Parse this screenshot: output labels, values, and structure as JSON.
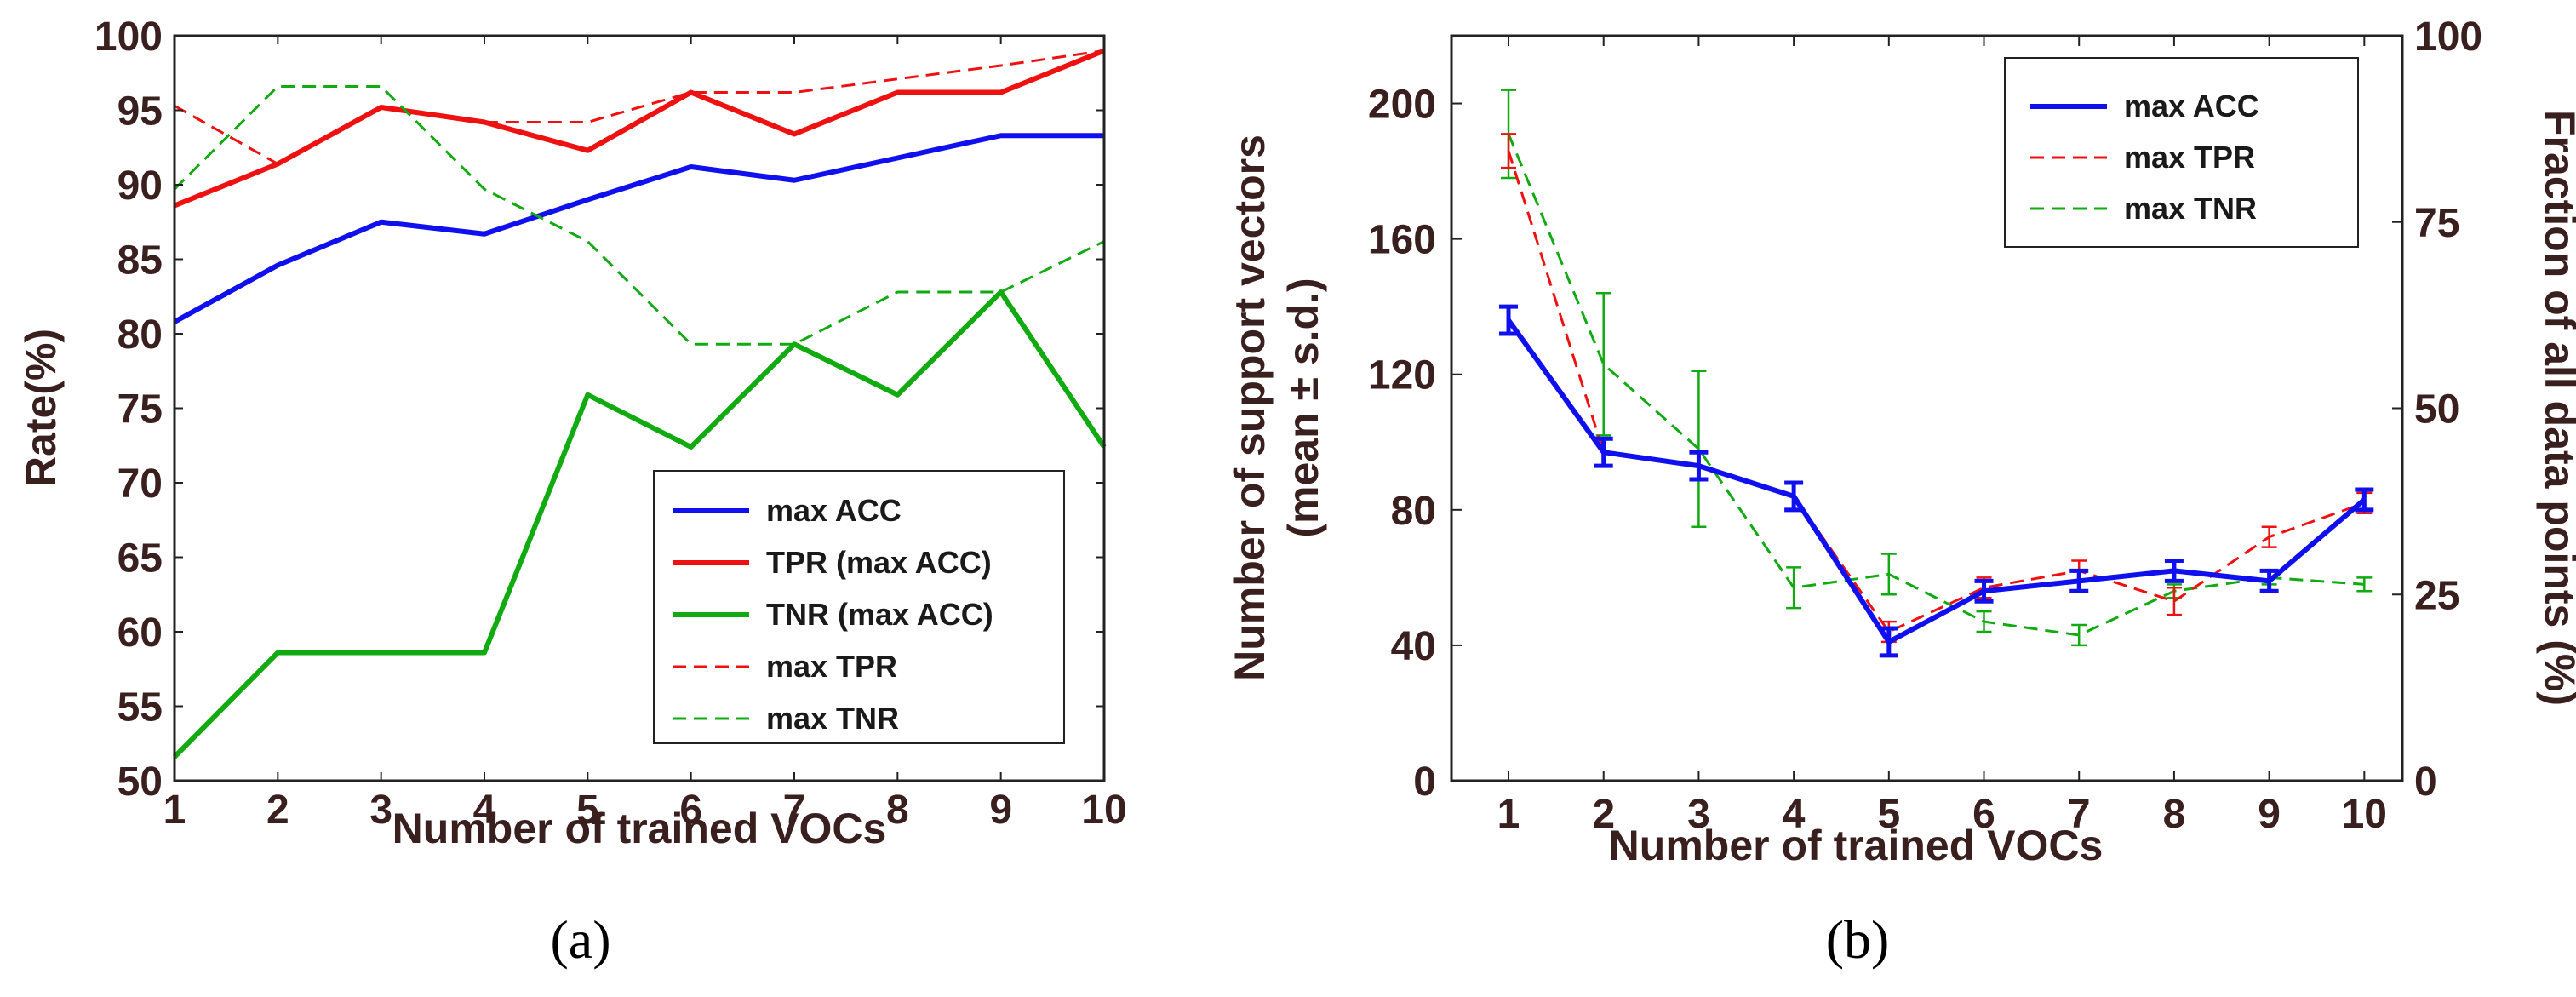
{
  "chart_data": [
    {
      "type": "line",
      "panel_label": "(a)",
      "xlabel": "Number of trained VOCs",
      "ylabel": "Rate(%)",
      "x": [
        1,
        2,
        3,
        4,
        5,
        6,
        7,
        8,
        9,
        10
      ],
      "xlim": [
        1,
        10
      ],
      "ylim": [
        50,
        100
      ],
      "xticks": [
        1,
        2,
        3,
        4,
        5,
        6,
        7,
        8,
        9,
        10
      ],
      "yticks": [
        50,
        55,
        60,
        65,
        70,
        75,
        80,
        85,
        90,
        95,
        100
      ],
      "legend_position": "bottom-right",
      "series": [
        {
          "name": "max ACC",
          "color": "#1010ee",
          "dash": "solid",
          "values": [
            80.8,
            84.6,
            87.5,
            86.7,
            89.0,
            91.2,
            90.3,
            91.8,
            93.3,
            93.3
          ]
        },
        {
          "name": "TPR (max ACC)",
          "color": "#ee1111",
          "dash": "solid",
          "values": [
            88.6,
            91.4,
            95.2,
            94.2,
            92.3,
            96.2,
            93.4,
            96.2,
            96.2,
            99.0
          ]
        },
        {
          "name": "TNR (max ACC)",
          "color": "#11aa11",
          "dash": "solid",
          "values": [
            51.6,
            58.6,
            58.6,
            58.6,
            75.9,
            72.4,
            79.3,
            75.9,
            82.8,
            72.4
          ]
        },
        {
          "name": "max TPR",
          "color": "#ee1111",
          "dash": "dashed",
          "values": [
            95.3,
            91.4,
            95.2,
            94.2,
            94.2,
            96.2,
            96.2,
            97.1,
            98.0,
            99.0
          ]
        },
        {
          "name": "max TNR",
          "color": "#11aa11",
          "dash": "dashed",
          "values": [
            89.7,
            96.6,
            96.6,
            89.7,
            86.2,
            79.3,
            79.3,
            82.8,
            82.8,
            86.2
          ]
        }
      ]
    },
    {
      "type": "line",
      "panel_label": "(b)",
      "xlabel": "Number of trained VOCs",
      "ylabel_lines": [
        "Number of support vectors",
        "(mean ± s.d.)"
      ],
      "y2label": "Fraction of all data points (%)",
      "x": [
        1,
        2,
        3,
        4,
        5,
        6,
        7,
        8,
        9,
        10
      ],
      "xlim": [
        0.4,
        10.4
      ],
      "ylim": [
        0,
        220
      ],
      "y2lim": [
        0,
        100
      ],
      "xticks": [
        1,
        2,
        3,
        4,
        5,
        6,
        7,
        8,
        9,
        10
      ],
      "yticks": [
        0,
        40,
        80,
        120,
        160,
        200
      ],
      "y2ticks": [
        0,
        25,
        50,
        75,
        100
      ],
      "legend_position": "top-right",
      "series": [
        {
          "name": "max ACC",
          "color": "#1010ee",
          "dash": "solid",
          "values": [
            136,
            97,
            93,
            84,
            41,
            56,
            59,
            62,
            59,
            83
          ],
          "errors": [
            4,
            4,
            4,
            4,
            4,
            3,
            3,
            3,
            3,
            3
          ]
        },
        {
          "name": "max TPR",
          "color": "#ee1111",
          "dash": "dashed",
          "values": [
            186,
            97,
            93,
            84,
            44,
            57,
            62,
            53,
            72,
            82
          ],
          "errors": [
            5,
            4,
            4,
            4,
            3,
            3,
            3,
            4,
            3,
            3
          ]
        },
        {
          "name": "max TNR",
          "color": "#11aa11",
          "dash": "dashed",
          "values": [
            191,
            123,
            98,
            57,
            61,
            47,
            43,
            56,
            60,
            58
          ],
          "errors": [
            13,
            21,
            23,
            6,
            6,
            3,
            3,
            2,
            2,
            2
          ]
        }
      ]
    }
  ]
}
